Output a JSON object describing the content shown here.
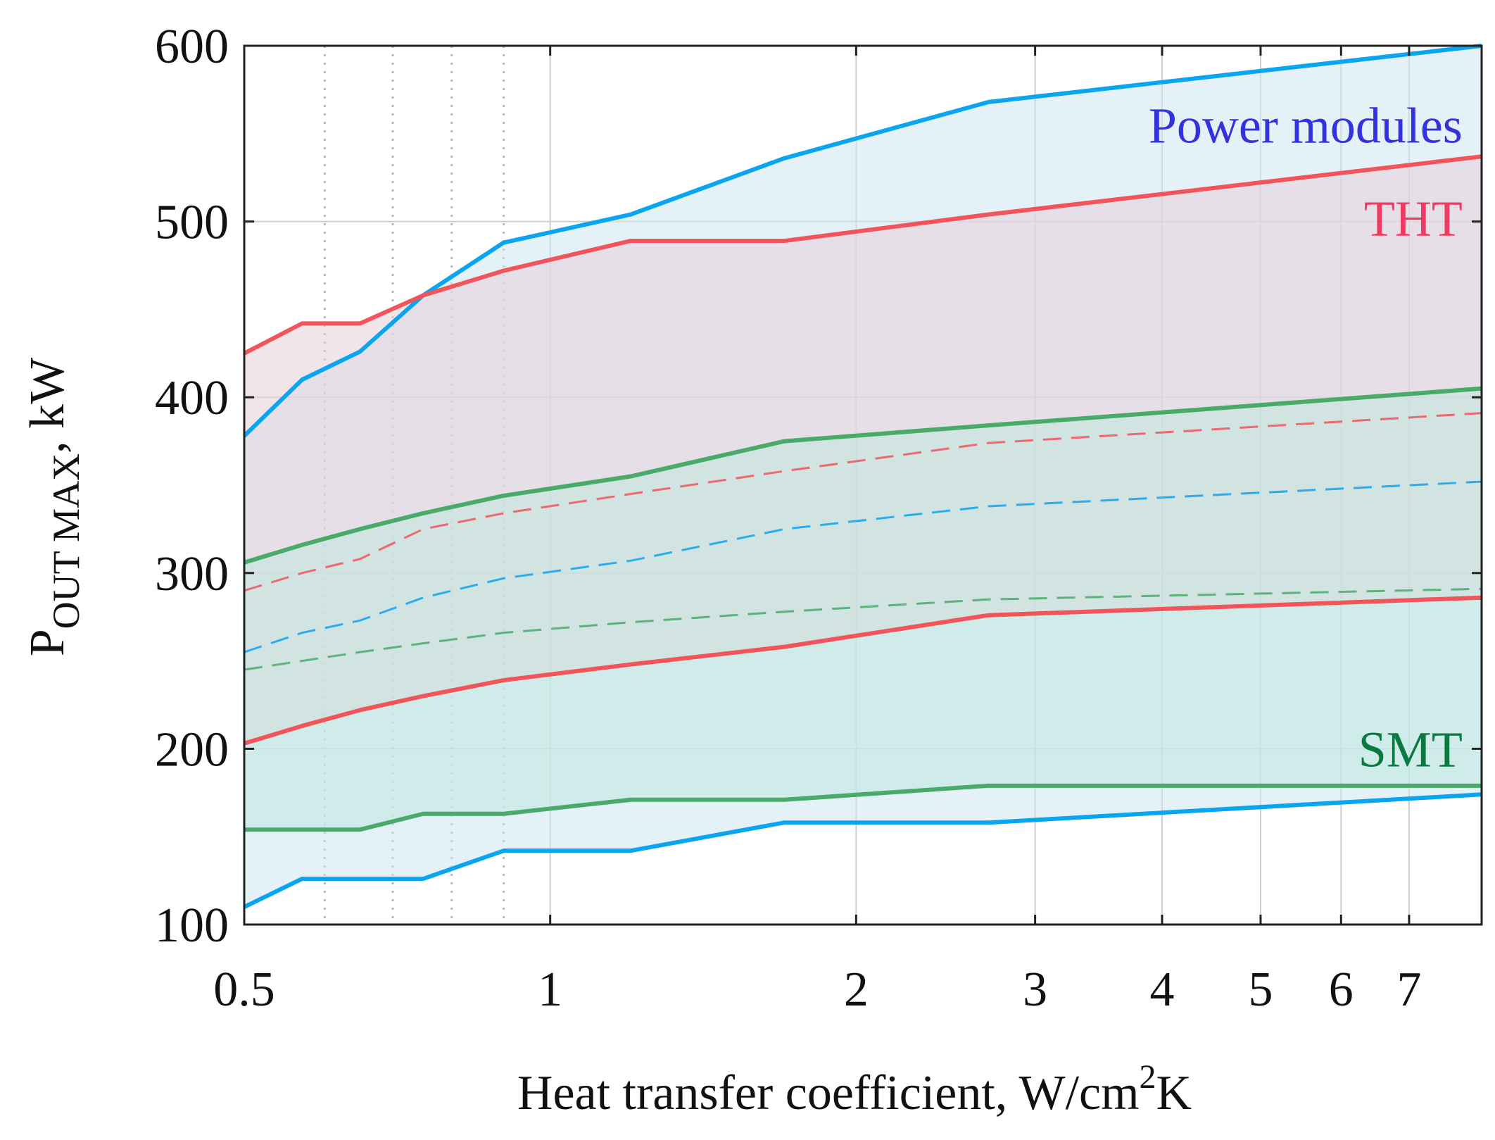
{
  "chart_data": {
    "type": "area",
    "x_scale": "log",
    "xlim": [
      0.5,
      8.25
    ],
    "ylim": [
      100,
      600
    ],
    "xlabel": {
      "text": "Heat transfer coefficient, W/cm",
      "sup": "2",
      "tail": "K"
    },
    "ylabel": {
      "main": "P",
      "sub": "OUT MAX",
      "tail": ", kW"
    },
    "xticks": [
      {
        "value": 0.5,
        "label": "0.5"
      },
      {
        "value": 1,
        "label": "1"
      },
      {
        "value": 2,
        "label": "2"
      },
      {
        "value": 3,
        "label": "3"
      },
      {
        "value": 4,
        "label": "4"
      },
      {
        "value": 5,
        "label": "5"
      },
      {
        "value": 6,
        "label": "6"
      },
      {
        "value": 7,
        "label": "7"
      }
    ],
    "yticks": [
      {
        "value": 100,
        "label": "100"
      },
      {
        "value": 200,
        "label": "200"
      },
      {
        "value": 300,
        "label": "300"
      },
      {
        "value": 400,
        "label": "400"
      },
      {
        "value": 500,
        "label": "500"
      },
      {
        "value": 600,
        "label": "600"
      }
    ],
    "minor_xgrid": [
      0.6,
      0.7,
      0.8,
      0.9
    ],
    "grid": true,
    "series": [
      {
        "name": "Power modules",
        "key": "pm",
        "color": "#0aa5f0",
        "fill": "#cde7f3",
        "label_color": "#3333dd",
        "label_at": {
          "x": 7.9,
          "y": 545
        },
        "upper": {
          "x": [
            0.5,
            0.57,
            0.65,
            0.75,
            0.9,
            1.2,
            1.7,
            2.7,
            8.25
          ],
          "y": [
            378,
            410,
            426,
            458,
            488,
            504,
            536,
            568,
            600
          ]
        },
        "lower": {
          "x": [
            0.5,
            0.57,
            0.65,
            0.75,
            0.9,
            1.2,
            1.7,
            2.7,
            8.25
          ],
          "y": [
            110,
            126,
            126,
            126,
            142,
            142,
            158,
            158,
            174
          ]
        },
        "median": {
          "x": [
            0.5,
            0.57,
            0.65,
            0.75,
            0.9,
            1.2,
            1.7,
            2.7,
            8.25
          ],
          "y": [
            255,
            266,
            273,
            286,
            297,
            307,
            325,
            338,
            352
          ]
        }
      },
      {
        "name": "THT",
        "key": "tht",
        "color": "#f2545b",
        "fill": "#e8cfd8",
        "label_color": "#ee3b62",
        "label_at": {
          "x": 7.9,
          "y": 492
        },
        "upper": {
          "x": [
            0.5,
            0.57,
            0.65,
            0.75,
            0.9,
            1.2,
            1.7,
            2.7,
            8.25
          ],
          "y": [
            425,
            442,
            442,
            458,
            472,
            489,
            489,
            504,
            537
          ]
        },
        "lower": {
          "x": [
            0.5,
            0.57,
            0.65,
            0.75,
            0.9,
            1.2,
            1.7,
            2.7,
            8.25
          ],
          "y": [
            203,
            213,
            222,
            230,
            239,
            248,
            258,
            276,
            286
          ]
        },
        "median": {
          "x": [
            0.5,
            0.57,
            0.65,
            0.75,
            0.9,
            1.2,
            1.7,
            2.7,
            8.25
          ],
          "y": [
            290,
            300,
            308,
            325,
            334,
            345,
            358,
            374,
            391
          ]
        }
      },
      {
        "name": "SMT",
        "key": "smt",
        "color": "#4aaa6a",
        "fill": "#bfe8de",
        "label_color": "#0a7a40",
        "label_at": {
          "x": 7.9,
          "y": 190
        },
        "upper": {
          "x": [
            0.5,
            0.57,
            0.65,
            0.75,
            0.9,
            1.2,
            1.7,
            2.7,
            8.25
          ],
          "y": [
            306,
            316,
            325,
            334,
            344,
            355,
            375,
            384,
            405
          ]
        },
        "lower": {
          "x": [
            0.5,
            0.57,
            0.65,
            0.75,
            0.9,
            1.2,
            1.7,
            2.7,
            8.25
          ],
          "y": [
            154,
            154,
            154,
            163,
            163,
            171,
            171,
            179,
            179
          ]
        },
        "median": {
          "x": [
            0.5,
            0.57,
            0.65,
            0.75,
            0.9,
            1.2,
            1.7,
            2.7,
            8.25
          ],
          "y": [
            245,
            250,
            255,
            260,
            266,
            272,
            278,
            285,
            291
          ]
        }
      }
    ]
  }
}
